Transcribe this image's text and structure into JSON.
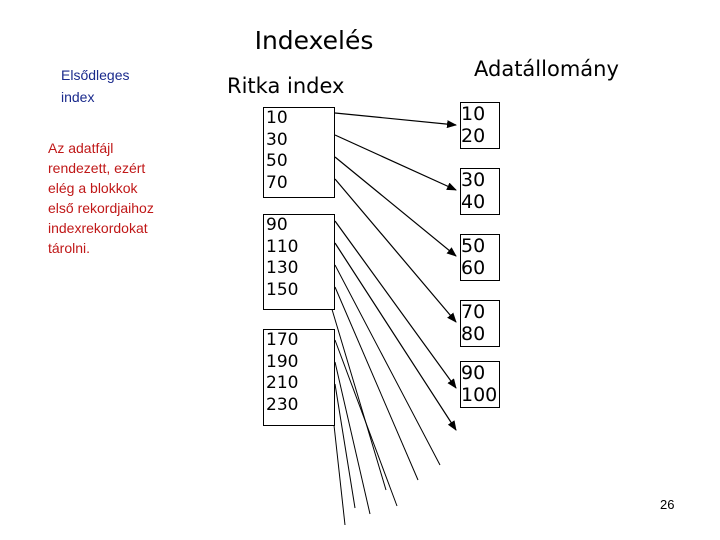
{
  "title": "Indexelés",
  "primary_label": [
    "Elsődleges",
    "index"
  ],
  "description": [
    "Az adatfájl",
    "rendezett, ezért",
    "elég a blokkok",
    "első rekordjaihoz",
    "indexrekordokat",
    "tárolni."
  ],
  "sparse_index_title": "Ritka index",
  "data_file_title": "Adatállomány",
  "index_blocks": [
    [
      "10",
      "30",
      "50",
      "70"
    ],
    [
      "90",
      "110",
      "130",
      "150"
    ],
    [
      "170",
      "190",
      "210",
      "230"
    ]
  ],
  "data_blocks": [
    [
      "10",
      "20"
    ],
    [
      "30",
      "40"
    ],
    [
      "50",
      "60"
    ],
    [
      "70",
      "80"
    ],
    [
      "90",
      "100"
    ]
  ],
  "page_number": "26"
}
